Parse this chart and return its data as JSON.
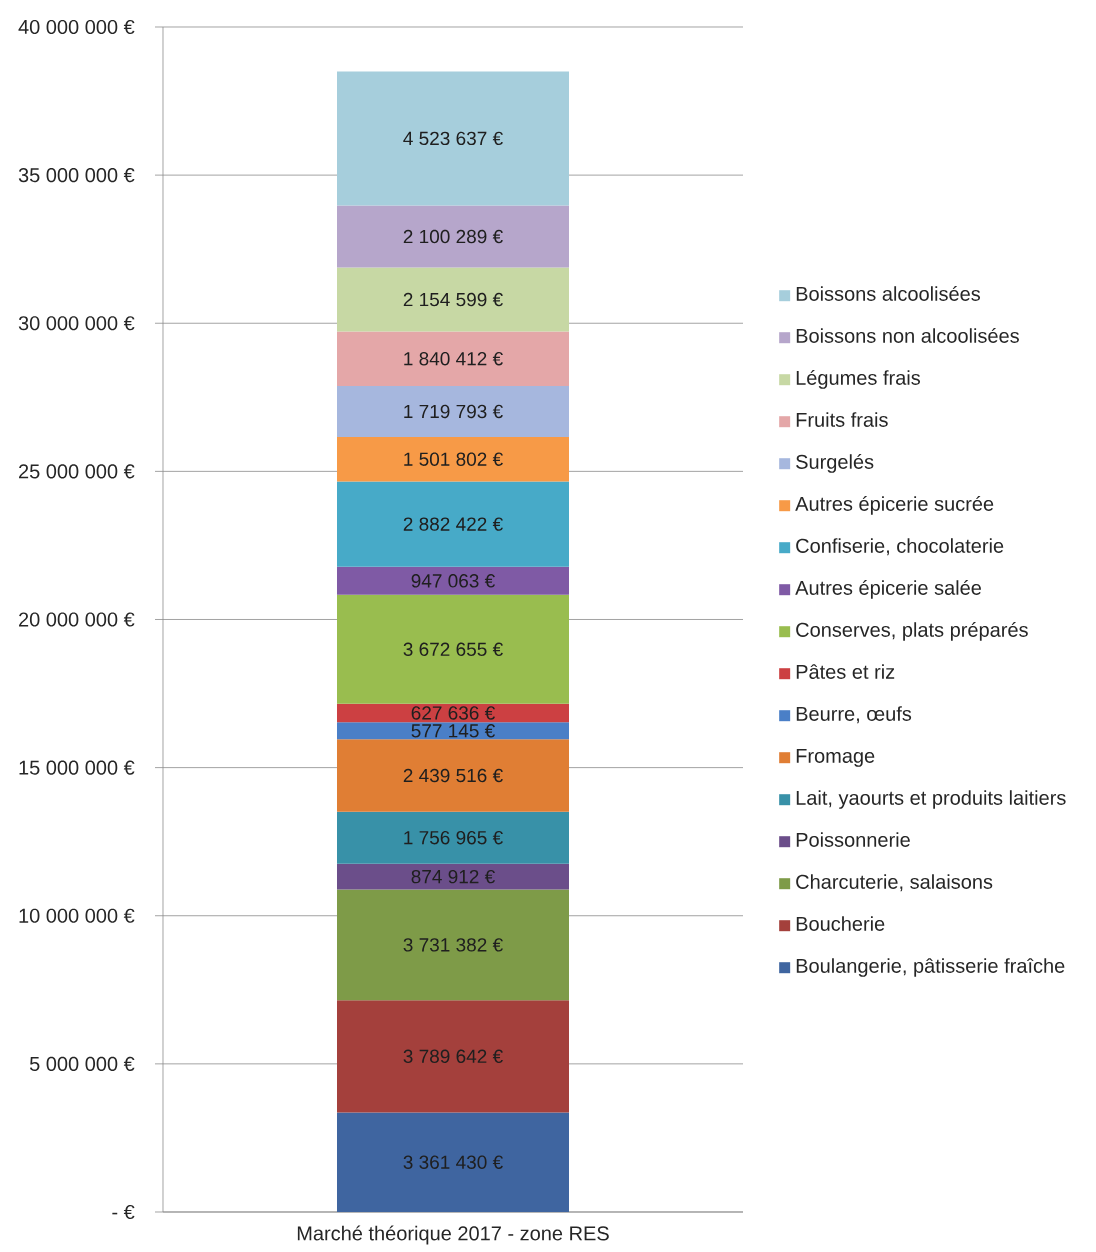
{
  "chart_data": {
    "type": "bar",
    "stacked": true,
    "categories": [
      "Marché théorique 2017 - zone RES"
    ],
    "series": [
      {
        "name": "Boulangerie, pâtisserie fraîche",
        "color": "#3f65a0",
        "values": [
          3361430
        ],
        "value_labels": [
          "3 361 430 €"
        ]
      },
      {
        "name": "Boucherie",
        "color": "#a4403c",
        "values": [
          3789642
        ],
        "value_labels": [
          "3 789 642 €"
        ]
      },
      {
        "name": "Charcuterie, salaisons",
        "color": "#7e9b48",
        "values": [
          3731382
        ],
        "value_labels": [
          "3 731 382 €"
        ]
      },
      {
        "name": "Poissonnerie",
        "color": "#6b4e8a",
        "values": [
          874912
        ],
        "value_labels": [
          "874 912 €"
        ]
      },
      {
        "name": "Lait, yaourts et produits laitiers",
        "color": "#3891a8",
        "values": [
          1756965
        ],
        "value_labels": [
          "1 756 965 €"
        ]
      },
      {
        "name": "Fromage",
        "color": "#e07e34",
        "values": [
          2439516
        ],
        "value_labels": [
          "2 439 516 €"
        ]
      },
      {
        "name": "Beurre, œufs",
        "color": "#4a7fc7",
        "values": [
          577145
        ],
        "value_labels": [
          "577 145 €"
        ]
      },
      {
        "name": "Pâtes et riz",
        "color": "#cc4042",
        "values": [
          627636
        ],
        "value_labels": [
          "627 636 €"
        ]
      },
      {
        "name": "Conserves, plats préparés",
        "color": "#99bd4f",
        "values": [
          3672655
        ],
        "value_labels": [
          "3 672 655 €"
        ]
      },
      {
        "name": "Autres épicerie salée",
        "color": "#7f5aa5",
        "values": [
          947063
        ],
        "value_labels": [
          "947 063 €"
        ]
      },
      {
        "name": "Confiserie, chocolaterie",
        "color": "#47aac8",
        "values": [
          2882422
        ],
        "value_labels": [
          "2 882 422 €"
        ]
      },
      {
        "name": "Autres épicerie sucrée",
        "color": "#f79a47",
        "values": [
          1501802
        ],
        "value_labels": [
          "1 501 802 €"
        ]
      },
      {
        "name": "Surgelés",
        "color": "#a6b7de",
        "values": [
          1719793
        ],
        "value_labels": [
          "1 719 793 €"
        ]
      },
      {
        "name": "Fruits frais",
        "color": "#e4a7a8",
        "values": [
          1840412
        ],
        "value_labels": [
          "1 840 412 €"
        ]
      },
      {
        "name": "Légumes frais",
        "color": "#c7d8a4",
        "values": [
          2154599
        ],
        "value_labels": [
          "2 154 599 €"
        ]
      },
      {
        "name": "Boissons non alcoolisées",
        "color": "#b6a6cb",
        "values": [
          2100289
        ],
        "value_labels": [
          "2 100 289 €"
        ]
      },
      {
        "name": "Boissons alcoolisées",
        "color": "#a6cedc",
        "values": [
          4523637
        ],
        "value_labels": [
          "4 523 637 €"
        ]
      }
    ],
    "ylim": [
      0,
      40000000
    ],
    "yticks": [
      {
        "value": 0,
        "label": "- €"
      },
      {
        "value": 5000000,
        "label": "5 000 000 €"
      },
      {
        "value": 10000000,
        "label": "10 000 000 €"
      },
      {
        "value": 15000000,
        "label": "15 000 000 €"
      },
      {
        "value": 20000000,
        "label": "20 000 000 €"
      },
      {
        "value": 25000000,
        "label": "25 000 000 €"
      },
      {
        "value": 30000000,
        "label": "30 000 000 €"
      },
      {
        "value": 35000000,
        "label": "35 000 000 €"
      },
      {
        "value": 40000000,
        "label": "40 000 000 €"
      }
    ],
    "grid": "y",
    "legend": "right"
  }
}
